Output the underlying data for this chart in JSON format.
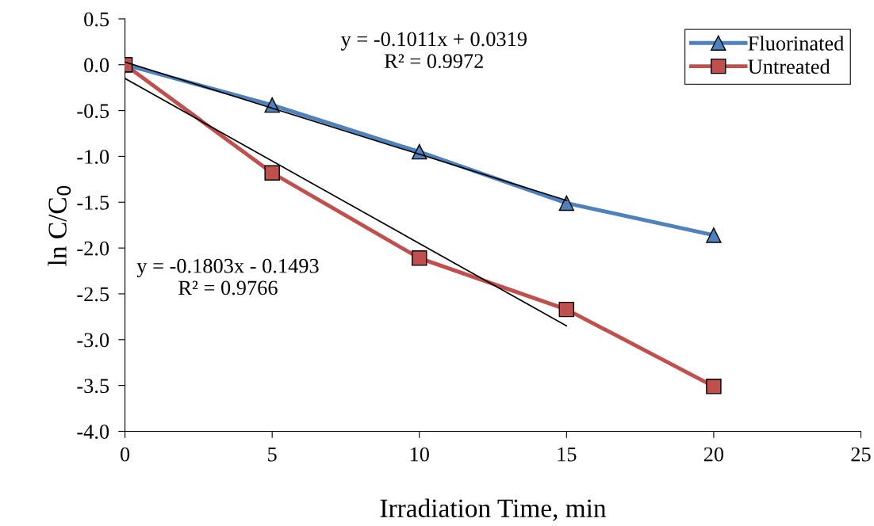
{
  "chart_data": {
    "type": "line",
    "xlabel": "Irradiation Time, min",
    "ylabel": "ln C/C$_{0}$",
    "xlim": [
      0,
      25
    ],
    "xticks": [
      0,
      5,
      10,
      15,
      20,
      25
    ],
    "ylim": [
      -4.0,
      0.5
    ],
    "yticks": [
      {
        "value": -4.0,
        "label": "-4.0"
      },
      {
        "value": -3.5,
        "label": "-3.5"
      },
      {
        "value": -3.0,
        "label": "-3.0"
      },
      {
        "value": -2.5,
        "label": "-2.5"
      },
      {
        "value": -2.0,
        "label": "-2.0"
      },
      {
        "value": -1.5,
        "label": "-1.5"
      },
      {
        "value": -1.0,
        "label": "-1.0"
      },
      {
        "value": -0.5,
        "label": "-0.5"
      },
      {
        "value": 0.0,
        "label": "0.0"
      },
      {
        "value": 0.5,
        "label": "0.5"
      }
    ],
    "grid": false,
    "legend": "top right",
    "series": [
      {
        "name": "Fluorinated",
        "color": "#4f81bd",
        "marker": "triangle",
        "x": [
          0,
          5,
          10,
          15,
          20
        ],
        "values": [
          0,
          -0.44,
          -0.95,
          -1.51,
          -1.86
        ]
      },
      {
        "name": "Untreated",
        "color": "#c0504d",
        "marker": "square",
        "x": [
          0,
          5,
          10,
          15,
          20
        ],
        "values": [
          0,
          -1.18,
          -2.11,
          -2.67,
          -3.51
        ]
      },
      {
        "color": "#000000",
        "marker": "none",
        "x": [
          0,
          15
        ],
        "values": [
          0.03,
          -1.48
        ]
      },
      {
        "color": "#000000",
        "marker": "none",
        "x": [
          0,
          15
        ],
        "values": [
          -0.15,
          -2.85
        ]
      }
    ],
    "annotations": [
      "y = -0.1011x + 0.0319\nR² = 0.9972",
      "y = -0.1803x - 0.1493\nR² = 0.9766"
    ]
  }
}
